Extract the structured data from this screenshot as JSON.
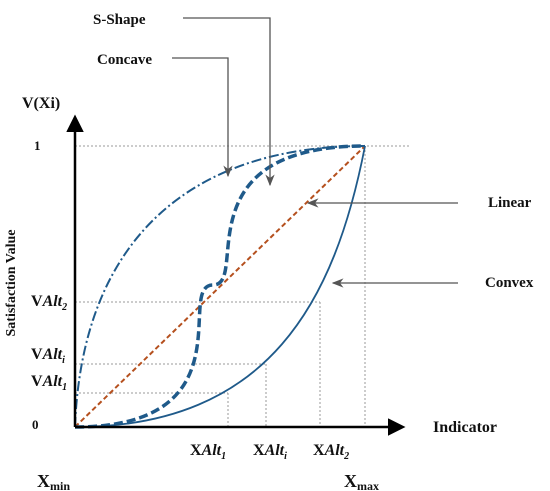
{
  "labels": {
    "y_axis_title": "V(Xi)",
    "y_axis_name": "Satisfaction Value",
    "x_axis_name": "Indicator",
    "one": "1",
    "zero": "0",
    "x_min_base": "X",
    "x_min_sub": "min",
    "x_max_base": "X",
    "x_max_sub": "max",
    "v_base": "V",
    "x_base": "X",
    "alt": "Alt",
    "alt_sub_1": "1",
    "alt_sub_i": "i",
    "alt_sub_2": "2"
  },
  "callouts": {
    "s_shape": "S-Shape",
    "concave": "Concave",
    "linear": "Linear",
    "convex": "Convex"
  },
  "colors": {
    "curve": "#1f5a8a",
    "linear": "#b5501e",
    "axis": "#000000",
    "guide": "#9a9a9a",
    "arrow": "#555555"
  }
}
